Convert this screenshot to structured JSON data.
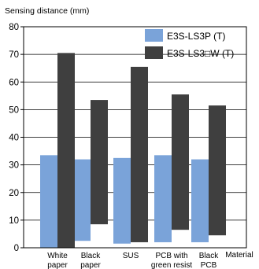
{
  "chart_data": {
    "type": "bar",
    "title": "",
    "ylabel": "Sensing distance (mm)",
    "xlabel": "Material",
    "ylim": [
      0,
      80
    ],
    "yticks": [
      0,
      10,
      20,
      30,
      40,
      50,
      60,
      70,
      80
    ],
    "grid": true,
    "legend_position": "top-right",
    "categories": [
      [
        "White",
        "paper"
      ],
      [
        "Black",
        "paper"
      ],
      [
        "SUS"
      ],
      [
        "PCB with",
        "green resist"
      ],
      [
        "Black",
        "PCB"
      ]
    ],
    "series": [
      {
        "name": "E3S-LS3P (T)",
        "color": "#7aa3d9",
        "ranges": [
          [
            0,
            33.5
          ],
          [
            2.5,
            32
          ],
          [
            1.5,
            32.5
          ],
          [
            2,
            33.5
          ],
          [
            2,
            32
          ]
        ]
      },
      {
        "name": "E3S-LS3□W (T)",
        "color": "#3f3f3f",
        "ranges": [
          [
            0,
            70.5
          ],
          [
            8.5,
            53.5
          ],
          [
            2,
            65.5
          ],
          [
            6.5,
            55.5
          ],
          [
            4.5,
            51.5
          ]
        ]
      }
    ]
  }
}
